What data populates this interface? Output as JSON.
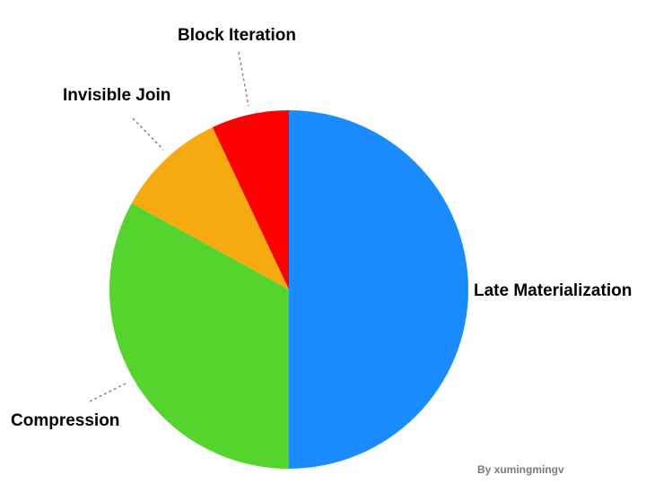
{
  "chart_data": {
    "type": "pie",
    "slices": [
      {
        "label": "Late  Materialization",
        "value": 50,
        "color": "#1a8cff"
      },
      {
        "label": "Compression",
        "value": 33,
        "color": "#55d42e"
      },
      {
        "label": "Invisible Join",
        "value": 10,
        "color": "#f6aa0f"
      },
      {
        "label": "Block Iteration",
        "value": 7,
        "color": "#ff0000"
      }
    ],
    "start": "12 o'clock",
    "direction": "clockwise",
    "legend": "none"
  },
  "credit": "By xumingmingv"
}
